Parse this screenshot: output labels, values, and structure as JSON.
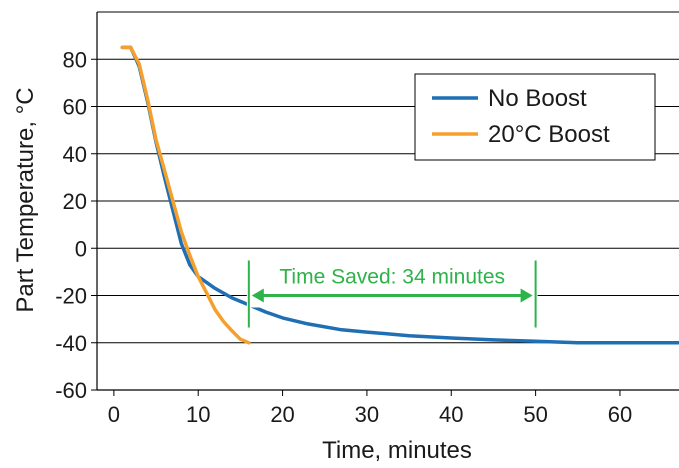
{
  "chart_data": {
    "type": "line",
    "xlabel": "Time, minutes",
    "ylabel": "Part Temperature, °C",
    "xlim": [
      -2,
      67
    ],
    "ylim": [
      -60,
      100
    ],
    "xticks": [
      0,
      10,
      20,
      30,
      40,
      50,
      60
    ],
    "yticks": [
      -60,
      -40,
      -20,
      0,
      20,
      40,
      60,
      80
    ],
    "grid": "horizontal",
    "legend_position": "top-right",
    "series": [
      {
        "name": "No Boost",
        "color": "#1f6fb5",
        "x": [
          1,
          2,
          3,
          4,
          5,
          6,
          7,
          8,
          9,
          10,
          12,
          14,
          16,
          18,
          20,
          23,
          27,
          30,
          35,
          40,
          45,
          50,
          55,
          60,
          67
        ],
        "y": [
          85,
          85,
          77,
          62,
          45,
          30,
          16,
          2,
          -7,
          -12,
          -17,
          -21,
          -24,
          -27,
          -29.5,
          -32,
          -34.5,
          -35.5,
          -37,
          -38,
          -38.8,
          -39.4,
          -40,
          -40,
          -40
        ]
      },
      {
        "name": "20°C Boost",
        "color": "#f5a02d",
        "x": [
          1,
          2,
          3,
          4,
          5,
          6,
          7,
          8,
          9,
          10,
          11,
          12,
          13,
          14,
          15,
          16
        ],
        "y": [
          85,
          85,
          78,
          63,
          46,
          33,
          20,
          7,
          -3,
          -12,
          -19,
          -26,
          -31,
          -35,
          -38.5,
          -40
        ]
      }
    ],
    "annotation": {
      "text": "Time Saved: 34 minutes",
      "x_start": 16,
      "x_end": 50,
      "arrow_y": -20,
      "color": "#2eb34a"
    }
  }
}
